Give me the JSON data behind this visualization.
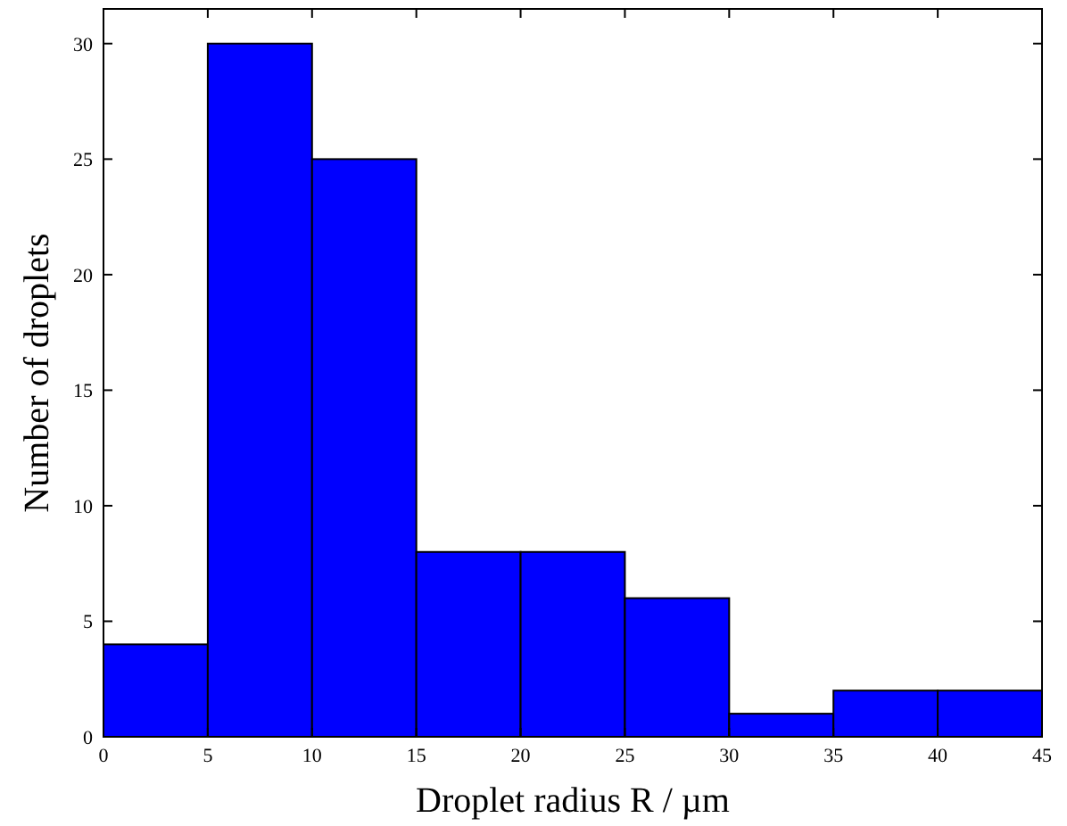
{
  "chart_data": {
    "type": "histogram",
    "xlabel": "Droplet radius R / µm",
    "ylabel": "Number of droplets",
    "bins": [
      0,
      5,
      10,
      15,
      20,
      25,
      30,
      35,
      40,
      45
    ],
    "values": [
      4,
      30,
      25,
      8,
      8,
      6,
      1,
      2,
      2
    ],
    "color": "#0000ff",
    "xlim": [
      0,
      45
    ],
    "xticks": [
      0,
      5,
      10,
      15,
      20,
      25,
      30,
      35,
      40,
      45
    ],
    "ylim": [
      0,
      31.5
    ],
    "yticks": [
      0,
      5,
      10,
      15,
      20,
      25,
      30
    ],
    "grid": false
  }
}
